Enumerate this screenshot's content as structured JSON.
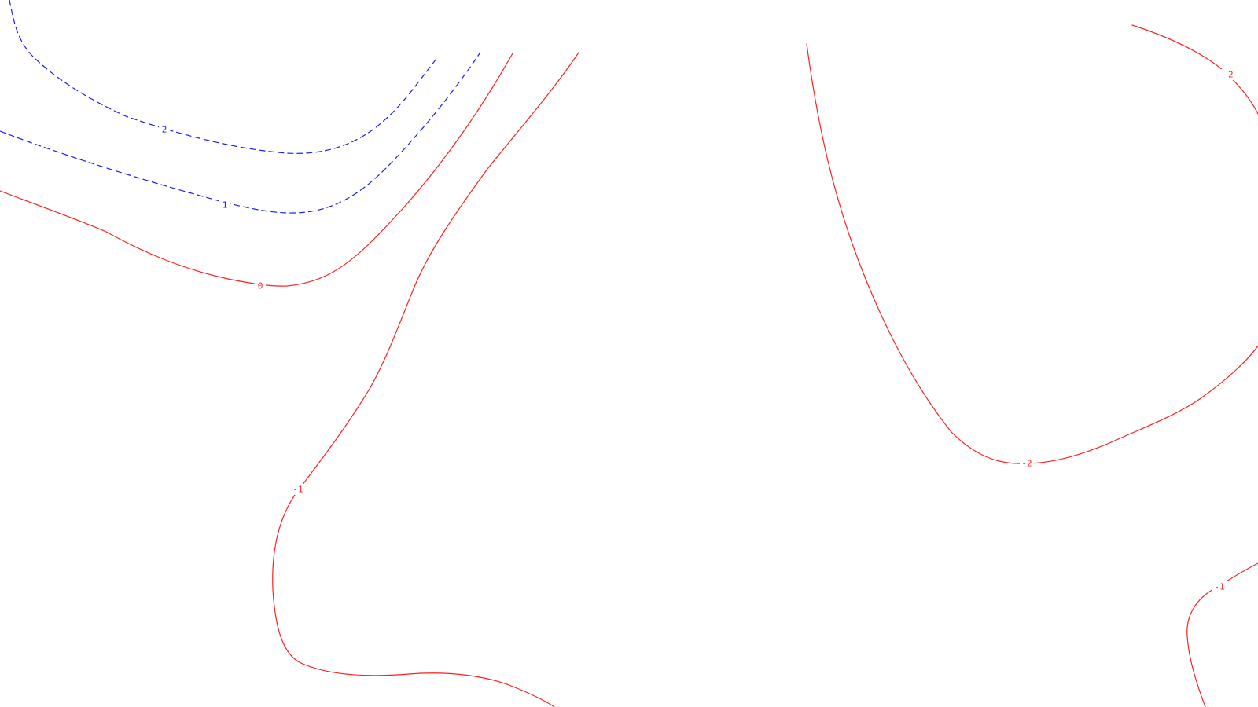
{
  "colors": {
    "background": "#ffffff",
    "positive_contour": "#1a1aff",
    "zero_or_negative_contour": "#ff2020"
  },
  "legend": {
    "positive_style": "dashed",
    "nonpositive_style": "solid"
  },
  "contours": [
    {
      "id": "c-pos2",
      "level": 2,
      "label": "2",
      "color": "#1a1aff",
      "style": "dashed"
    },
    {
      "id": "c-pos1",
      "level": 1,
      "label": "1",
      "color": "#1a1aff",
      "style": "dashed"
    },
    {
      "id": "c-zero",
      "level": 0,
      "label": "0",
      "color": "#ff2020",
      "style": "solid"
    },
    {
      "id": "c-neg1-left",
      "level": -1,
      "label": "-1",
      "color": "#ff2020",
      "style": "solid"
    },
    {
      "id": "c-neg2-center",
      "level": -2,
      "label": "-2",
      "color": "#ff2020",
      "style": "solid"
    },
    {
      "id": "c-neg2-topright",
      "level": -2,
      "label": "-2",
      "color": "#ff2020",
      "style": "solid"
    },
    {
      "id": "c-neg1-bottomright",
      "level": -1,
      "label": "-1",
      "color": "#ff2020",
      "style": "solid"
    }
  ]
}
